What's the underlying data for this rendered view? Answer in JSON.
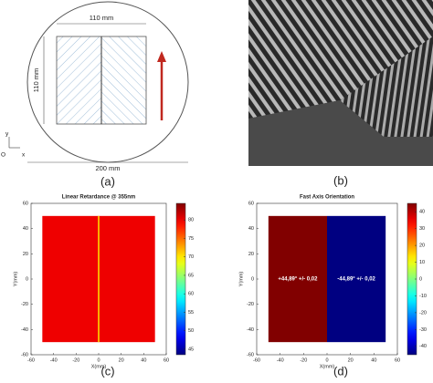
{
  "diagram": {
    "width_label": "110 mm",
    "height_label": "110 mm",
    "diameter_label": "200 mm",
    "axis_y": "y",
    "axis_x": "x",
    "origin": "O",
    "panel_label": "(a)"
  },
  "image": {
    "panel_label": "(b)"
  },
  "chart_data": [
    {
      "type": "heatmap",
      "title": "Linear Retardance @ 355nm",
      "xlabel": "X(mm)",
      "ylabel": "Y(mm)",
      "panel_label": "(c)",
      "xlim": [
        -60,
        60
      ],
      "ylim": [
        -60,
        60
      ],
      "xticks": [
        -60,
        -40,
        -20,
        0,
        20,
        40,
        60
      ],
      "yticks": [
        -60,
        -40,
        -20,
        0,
        20,
        40,
        60
      ],
      "colormap": "jet",
      "clim": [
        43.5,
        84.5
      ],
      "cticks": [
        45,
        50,
        55,
        60,
        65,
        70,
        75,
        80
      ],
      "regions": [
        {
          "x": [
            -50,
            50
          ],
          "y": [
            -50,
            50
          ],
          "value": 80
        },
        {
          "x": [
            -0.6,
            0.6
          ],
          "y": [
            -50,
            50
          ],
          "value": 70
        }
      ]
    },
    {
      "type": "heatmap",
      "title": "Fast Axis Orientation",
      "xlabel": "X(mm)",
      "ylabel": "Y(mm)",
      "panel_label": "(d)",
      "xlim": [
        -60,
        60
      ],
      "ylim": [
        -60,
        60
      ],
      "xticks": [
        -60,
        -40,
        -20,
        0,
        20,
        40,
        60
      ],
      "yticks": [
        -60,
        -40,
        -20,
        0,
        20,
        40,
        60
      ],
      "colormap": "jet",
      "clim": [
        -45,
        45
      ],
      "cticks": [
        -40,
        -30,
        -20,
        -10,
        0,
        10,
        20,
        30,
        40
      ],
      "regions": [
        {
          "x": [
            -50,
            0
          ],
          "y": [
            -50,
            50
          ],
          "value": 44.89,
          "value_label": "+44,89° +/- 0,02"
        },
        {
          "x": [
            0,
            50
          ],
          "y": [
            -50,
            50
          ],
          "value": -44.89,
          "value_label": "-44,89° +/- 0,02"
        }
      ]
    }
  ]
}
